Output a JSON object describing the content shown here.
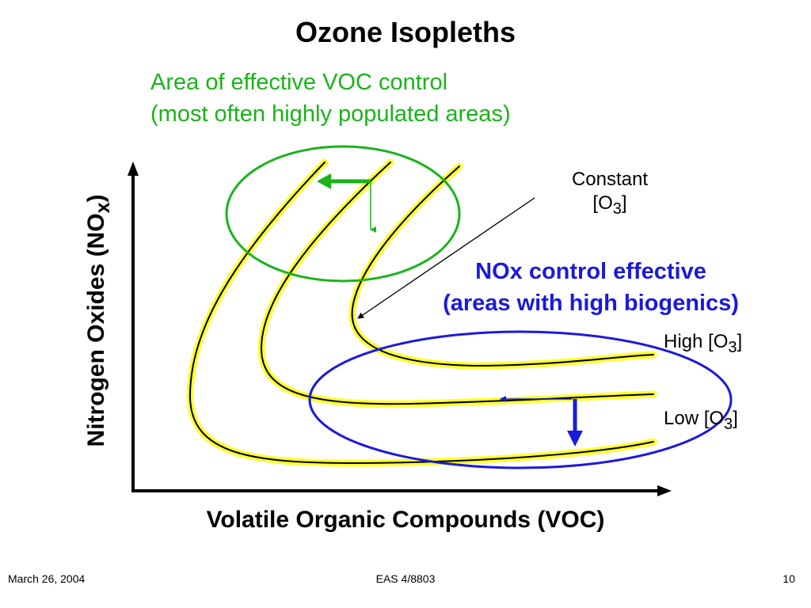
{
  "slide": {
    "title": "Ozone Isopleths",
    "voc_note": {
      "line1": "Area of effective VOC control",
      "line2": "(most often highly populated areas)"
    },
    "nox_note": {
      "line1": "NOx control effective",
      "line2": "(areas with high biogenics)"
    },
    "constant_label": {
      "line1": "Constant",
      "line2_prefix": "[O",
      "line2_sub": "3",
      "line2_suffix": "]"
    },
    "high_label": {
      "prefix": "High [O",
      "sub": "3",
      "suffix": "]"
    },
    "low_label": {
      "prefix": "Low [O",
      "sub": "3",
      "suffix": "]"
    },
    "x_axis_label": "Volatile Organic Compounds (VOC)",
    "y_axis_label": {
      "prefix": "Nitrogen Oxides  (NO",
      "sub": "x",
      "suffix": ")"
    }
  },
  "footer": {
    "date": "March 26, 2004",
    "course": "EAS 4/8803",
    "page": "10"
  },
  "colors": {
    "voc_region": "#1ab31a",
    "nox_region": "#1a1adc",
    "isopleth_highlight": "#ffff33",
    "isopleth_line": "#000000"
  }
}
